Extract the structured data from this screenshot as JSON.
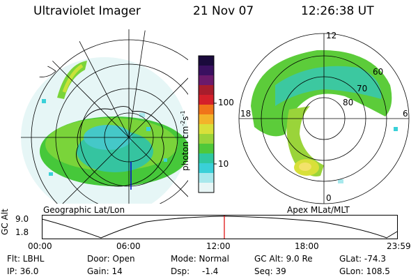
{
  "header": {
    "instrument": "Ultraviolet Imager",
    "date": "21 Nov 07",
    "time": "12:26:38 UT"
  },
  "left_panel": {
    "label": "Geographic Lat/Lon"
  },
  "right_panel": {
    "label": "Apex MLat/MLT",
    "mlt_labels": [
      "12",
      "18",
      "6",
      "0"
    ],
    "lat_labels": [
      "60",
      "70",
      "80"
    ]
  },
  "colorbar": {
    "unit_label": "photon cm",
    "unit_sup1": "-2",
    "unit_mid": "s",
    "unit_sup2": "-1",
    "ticks": [
      "100",
      "10"
    ],
    "colors": [
      "#1a0a3c",
      "#3a1060",
      "#6b1a6b",
      "#a81d2c",
      "#d4202a",
      "#f0741a",
      "#f3b32a",
      "#d8e03a",
      "#9ad43a",
      "#4fc83a",
      "#2fc8a0",
      "#3ad0d8",
      "#a8e8ec",
      "#e8f6f6"
    ]
  },
  "altitude_plot": {
    "ylabel": "GC Alt",
    "yticks": [
      "9.0",
      "1.8"
    ],
    "xticks": [
      "00:00",
      "06:00",
      "12:00",
      "18:00",
      "23:59"
    ]
  },
  "info": {
    "filter": "Flt: LBHL",
    "door": "Door: Open",
    "mode": "Mode: Normal",
    "gc_alt": "GC Alt: 9.0 Re",
    "glat": "GLat: -74.3",
    "ip": "IP: 36.0",
    "gain": "Gain: 14",
    "dsp_label": "Dsp:",
    "dsp_value": "-1.4",
    "seq": "Seq: 39",
    "glon": "GLon: 108.5"
  }
}
